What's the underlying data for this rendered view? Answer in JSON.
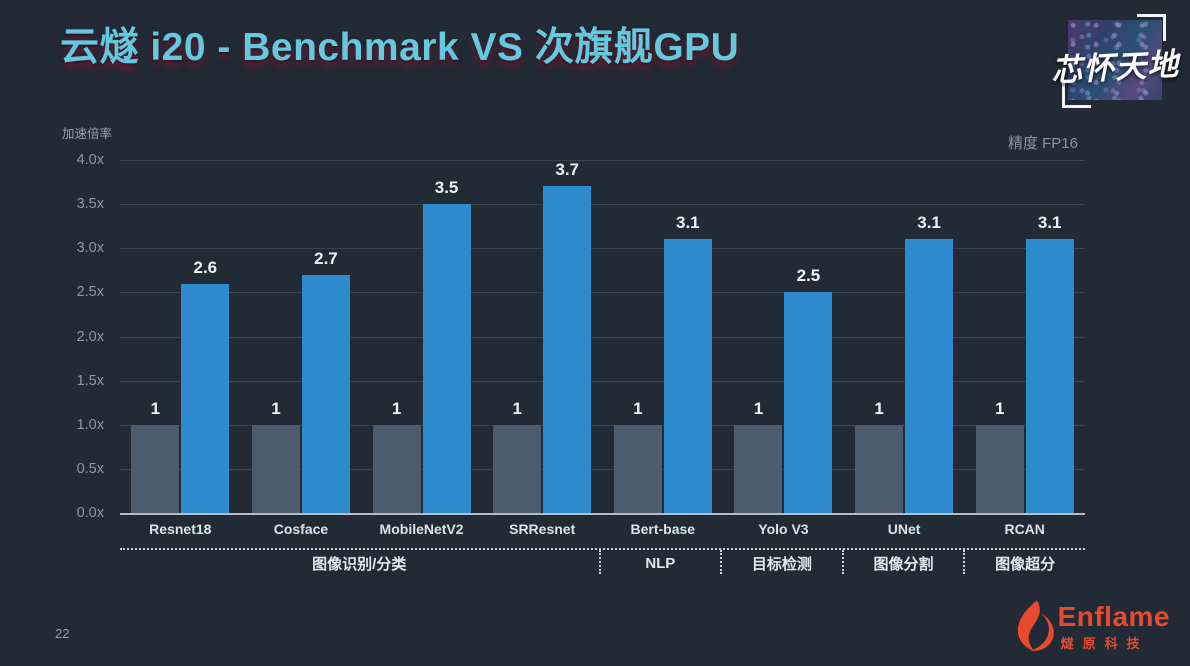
{
  "slide": {
    "title": "云燧 i20 - Benchmark VS 次旗舰GPU",
    "page_number": "22"
  },
  "badge": {
    "text": "芯怀天地"
  },
  "logo": {
    "brand": "Enflame",
    "subtitle": "燧原科技",
    "color": "#e94a2e"
  },
  "chart_data": {
    "type": "bar",
    "title": "云燧 i20 - Benchmark VS 次旗舰GPU",
    "ylabel": "加速倍率",
    "note": "精度 FP16",
    "ylim": [
      0,
      4
    ],
    "yticks": [
      "0.0x",
      "0.5x",
      "1.0x",
      "1.5x",
      "2.0x",
      "2.5x",
      "3.0x",
      "3.5x",
      "4.0x"
    ],
    "grid": true,
    "legend_position": "none",
    "categories": [
      "Resnet18",
      "Cosface",
      "MobileNetV2",
      "SRResnet",
      "Bert-base",
      "Yolo V3",
      "UNet",
      "RCAN"
    ],
    "series": [
      {
        "name": "次旗舰GPU",
        "color": "#4d5c6c",
        "values": [
          1,
          1,
          1,
          1,
          1,
          1,
          1,
          1
        ],
        "labels": [
          "1",
          "1",
          "1",
          "1",
          "1",
          "1",
          "1",
          "1"
        ]
      },
      {
        "name": "云燧 i20",
        "color": "#2e8bce",
        "values": [
          2.6,
          2.7,
          3.5,
          3.7,
          3.1,
          2.5,
          3.1,
          3.1
        ],
        "labels": [
          "2.6",
          "2.7",
          "3.5",
          "3.7",
          "3.1",
          "2.5",
          "3.1",
          "3.1"
        ]
      }
    ],
    "groups": [
      {
        "label": "图像识别/分类",
        "span": 4
      },
      {
        "label": "NLP",
        "span": 1
      },
      {
        "label": "目标检测",
        "span": 1
      },
      {
        "label": "图像分割",
        "span": 1
      },
      {
        "label": "图像超分",
        "span": 1
      }
    ]
  }
}
